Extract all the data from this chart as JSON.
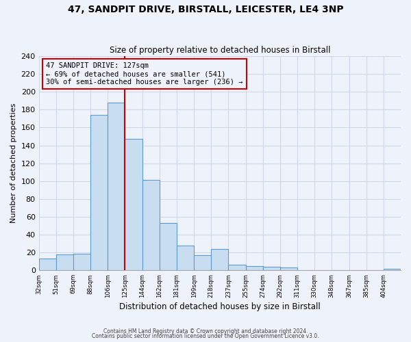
{
  "title_line1": "47, SANDPIT DRIVE, BIRSTALL, LEICESTER, LE4 3NP",
  "title_line2": "Size of property relative to detached houses in Birstall",
  "xlabel": "Distribution of detached houses by size in Birstall",
  "ylabel": "Number of detached properties",
  "bin_labels": [
    "32sqm",
    "51sqm",
    "69sqm",
    "88sqm",
    "106sqm",
    "125sqm",
    "144sqm",
    "162sqm",
    "181sqm",
    "199sqm",
    "218sqm",
    "237sqm",
    "255sqm",
    "274sqm",
    "292sqm",
    "311sqm",
    "330sqm",
    "348sqm",
    "367sqm",
    "385sqm",
    "404sqm"
  ],
  "bar_values": [
    13,
    18,
    19,
    174,
    188,
    147,
    101,
    53,
    28,
    17,
    24,
    6,
    5,
    4,
    3,
    0,
    0,
    0,
    0,
    0,
    2
  ],
  "n_bars": 21,
  "property_bin_index": 5,
  "vline_label": "47 SANDPIT DRIVE: 127sqm",
  "annotation_line2": "← 69% of detached houses are smaller (541)",
  "annotation_line3": "30% of semi-detached houses are larger (236) →",
  "bar_color": "#c8ddf0",
  "bar_edge_color": "#5b9bd5",
  "vline_color": "#cc0000",
  "annotation_box_edge": "#cc0000",
  "background_color": "#eef2fa",
  "grid_color": "#d0d8e8",
  "ylim": [
    0,
    240
  ],
  "yticks": [
    0,
    20,
    40,
    60,
    80,
    100,
    120,
    140,
    160,
    180,
    200,
    220,
    240
  ],
  "footer_line1": "Contains HM Land Registry data © Crown copyright and database right 2024.",
  "footer_line2": "Contains public sector information licensed under the Open Government Licence v3.0."
}
